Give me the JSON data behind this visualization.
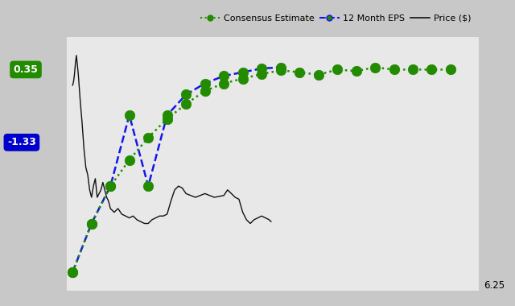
{
  "title": "",
  "legend_label_consensus": "Consensus Estimate",
  "legend_label_12month": "12 Month EPS",
  "legend_label_price": "Price ($)",
  "bg_color": "#c8c8c8",
  "plot_bg_color": "#e8e8e8",
  "right_label": "6.25",
  "label_035_text": "0.35",
  "label_035_color": "#228B00",
  "label_133_text": "-1.33",
  "label_133_color": "#0000CC",
  "consensus_color": "#228B00",
  "eps12_color": "#1515EE",
  "price_color": "#111111",
  "consensus_x": [
    0,
    1,
    2,
    3,
    4,
    5,
    6,
    7,
    8,
    9,
    10,
    11,
    12,
    13,
    14,
    15,
    16,
    17,
    18,
    19,
    20
  ],
  "consensus_y": [
    -4.8,
    -3.5,
    -2.5,
    -1.8,
    -1.2,
    -0.7,
    -0.3,
    0.05,
    0.25,
    0.38,
    0.5,
    0.6,
    0.55,
    0.48,
    0.62,
    0.58,
    0.68,
    0.62,
    0.62,
    0.62,
    0.62
  ],
  "eps12_x": [
    0,
    1,
    2,
    3,
    4,
    5,
    6,
    7,
    8,
    9,
    10,
    11
  ],
  "eps12_y": [
    -4.8,
    -3.5,
    -2.5,
    -0.6,
    -2.5,
    -0.6,
    -0.05,
    0.25,
    0.45,
    0.55,
    0.65,
    0.68
  ],
  "price_x": [
    0.0,
    0.05,
    0.1,
    0.15,
    0.2,
    0.3,
    0.4,
    0.5,
    0.6,
    0.7,
    0.8,
    0.9,
    1.0,
    1.1,
    1.2,
    1.3,
    1.4,
    1.5,
    1.6,
    1.7,
    1.8,
    1.9,
    2.0,
    2.2,
    2.4,
    2.6,
    2.8,
    3.0,
    3.2,
    3.4,
    3.6,
    3.8,
    4.0,
    4.2,
    4.4,
    4.6,
    4.8,
    5.0,
    5.2,
    5.4,
    5.6,
    5.8,
    6.0,
    6.5,
    7.0,
    7.5,
    8.0,
    8.2,
    8.4,
    8.6,
    8.8,
    9.0,
    9.2,
    9.4,
    9.6,
    9.8,
    10.0,
    10.2,
    10.4,
    10.5
  ],
  "price_y": [
    0.2,
    0.3,
    0.5,
    0.8,
    1.0,
    0.5,
    -0.2,
    -0.8,
    -1.5,
    -2.0,
    -2.2,
    -2.6,
    -2.8,
    -2.5,
    -2.3,
    -2.8,
    -2.7,
    -2.6,
    -2.4,
    -2.6,
    -2.8,
    -2.9,
    -3.1,
    -3.2,
    -3.1,
    -3.25,
    -3.3,
    -3.35,
    -3.3,
    -3.4,
    -3.45,
    -3.5,
    -3.5,
    -3.4,
    -3.35,
    -3.3,
    -3.3,
    -3.25,
    -2.9,
    -2.6,
    -2.5,
    -2.55,
    -2.7,
    -2.8,
    -2.7,
    -2.8,
    -2.75,
    -2.6,
    -2.7,
    -2.8,
    -2.85,
    -3.2,
    -3.4,
    -3.5,
    -3.4,
    -3.35,
    -3.3,
    -3.35,
    -3.4,
    -3.45
  ],
  "ylim": [
    -5.3,
    1.5
  ],
  "xlim": [
    -0.3,
    21.5
  ],
  "grid_color": "#ffffff",
  "grid_lw": 0.8
}
